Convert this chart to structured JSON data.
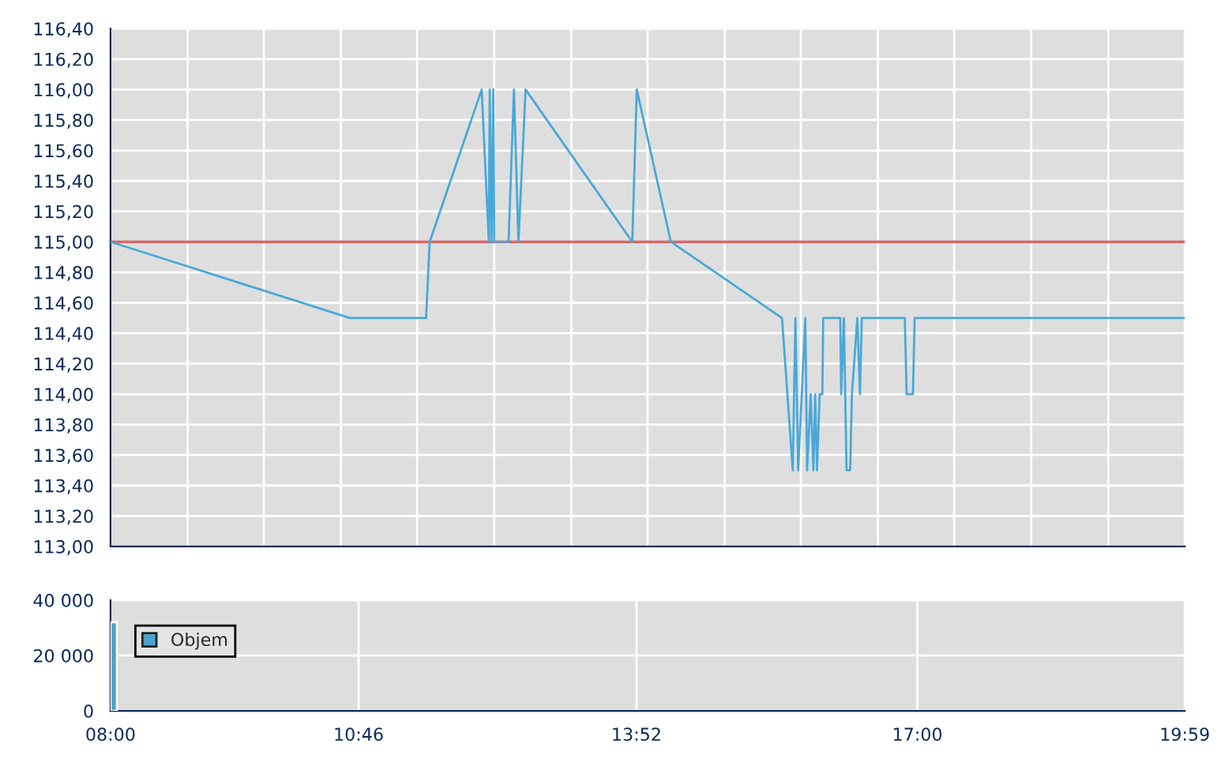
{
  "chart_data": [
    {
      "type": "line",
      "x": [
        8.0,
        10.67,
        11.52,
        11.56,
        12.14,
        12.22,
        12.23,
        12.25,
        12.27,
        12.28,
        12.44,
        12.5,
        12.55,
        12.63,
        13.82,
        13.87,
        14.25,
        15.49,
        15.61,
        15.64,
        15.67,
        15.75,
        15.77,
        15.81,
        15.84,
        15.86,
        15.88,
        15.91,
        15.94,
        15.95,
        16.14,
        16.15,
        16.18,
        16.21,
        16.25,
        16.27,
        16.33,
        16.36,
        16.38,
        16.86,
        16.88,
        16.95,
        16.97,
        19.98
      ],
      "series": [
        {
          "color": "#4aa8d8",
          "values": [
            115.0,
            114.5,
            114.5,
            115.0,
            116.0,
            115.0,
            116.0,
            115.0,
            116.0,
            115.0,
            115.0,
            116.0,
            115.0,
            116.0,
            115.0,
            116.0,
            115.0,
            114.5,
            113.5,
            114.5,
            113.5,
            114.5,
            113.5,
            114.0,
            113.5,
            114.0,
            113.5,
            114.0,
            114.0,
            114.5,
            114.5,
            114.0,
            114.5,
            113.5,
            113.5,
            114.0,
            114.5,
            114.0,
            114.5,
            114.5,
            114.0,
            114.0,
            114.5,
            114.5
          ]
        }
      ],
      "xlim": [
        8,
        19.983
      ],
      "xticks": [
        {
          "value": 8,
          "label": null
        },
        {
          "value": 8.86,
          "label": null
        },
        {
          "value": 9.71,
          "label": null
        },
        {
          "value": 10.57,
          "label": null
        },
        {
          "value": 11.42,
          "label": null
        },
        {
          "value": 12.28,
          "label": null
        },
        {
          "value": 13.14,
          "label": null
        },
        {
          "value": 13.99,
          "label": null
        },
        {
          "value": 14.85,
          "label": null
        },
        {
          "value": 15.7,
          "label": null
        },
        {
          "value": 16.56,
          "label": null
        },
        {
          "value": 17.41,
          "label": null
        },
        {
          "value": 18.27,
          "label": null
        },
        {
          "value": 19.13,
          "label": null
        },
        {
          "value": 19.983,
          "label": null
        }
      ],
      "ylim": [
        113.0,
        116.4
      ],
      "yticks": [
        {
          "value": 113.0,
          "label": "113,00"
        },
        {
          "value": 113.2,
          "label": "113,20"
        },
        {
          "value": 113.4,
          "label": "113,40"
        },
        {
          "value": 113.6,
          "label": "113,60"
        },
        {
          "value": 113.8,
          "label": "113,80"
        },
        {
          "value": 114.0,
          "label": "114,00"
        },
        {
          "value": 114.2,
          "label": "114,20"
        },
        {
          "value": 114.4,
          "label": "114,40"
        },
        {
          "value": 114.6,
          "label": "114,60"
        },
        {
          "value": 114.8,
          "label": "114,80"
        },
        {
          "value": 115.0,
          "label": "115,00"
        },
        {
          "value": 115.2,
          "label": "115,20"
        },
        {
          "value": 115.4,
          "label": "115,40"
        },
        {
          "value": 115.6,
          "label": "115,60"
        },
        {
          "value": 115.8,
          "label": "115,80"
        },
        {
          "value": 116.0,
          "label": "116,00"
        },
        {
          "value": 116.2,
          "label": "116,20"
        },
        {
          "value": 116.4,
          "label": "116,40"
        }
      ],
      "ref_lines": [
        {
          "axis": "y",
          "value": 115.0,
          "color": "#d06a6a"
        }
      ],
      "grid": true,
      "tick_labels": "y"
    },
    {
      "type": "bar",
      "x": [
        8.0
      ],
      "series": [
        {
          "name": "Objem",
          "color": "#4aa3cc",
          "values": [
            32000
          ]
        }
      ],
      "xlim": [
        8,
        19.983
      ],
      "xticks": [
        {
          "value": 8,
          "label": "08:00"
        },
        {
          "value": 10.767,
          "label": "10:46"
        },
        {
          "value": 13.867,
          "label": "13:52"
        },
        {
          "value": 17,
          "label": "17:00"
        },
        {
          "value": 19.983,
          "label": "19:59"
        }
      ],
      "ylim": [
        0,
        40000
      ],
      "yticks": [
        0,
        {
          "value": 20000,
          "label": "20 000"
        },
        {
          "value": 40000,
          "label": "40 000"
        }
      ],
      "grid": true,
      "legend": "top left"
    }
  ]
}
